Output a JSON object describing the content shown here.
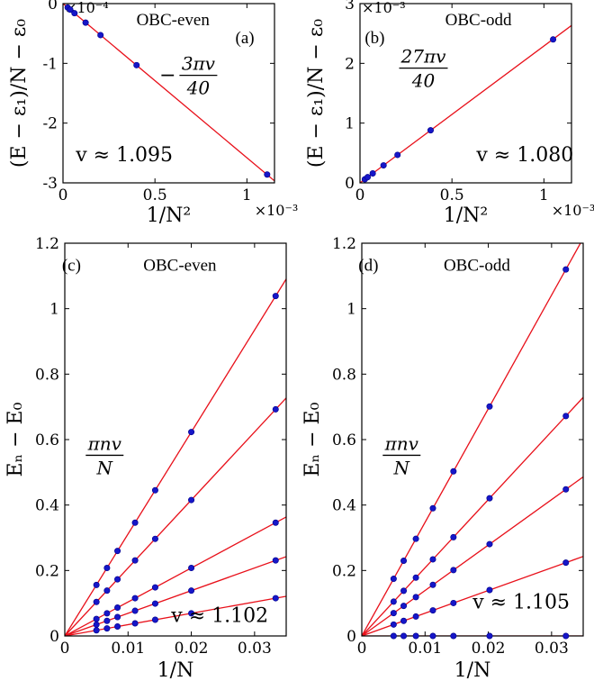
{
  "colors": {
    "fit_line": "#e8101a",
    "marker": "#1616c8",
    "marker_edge": "#00008b",
    "axes": "#000000"
  },
  "chart_data": [
    {
      "panel": "a",
      "type": "scatter",
      "tag": "(a)",
      "title": "OBC-even",
      "xlabel": "1/N²",
      "ylabel": "(E − ε₁)/N − ε₀",
      "x_multiplier": "×10⁻³",
      "y_multiplier": "×10⁻⁴",
      "xlim": [
        0,
        0.00115
      ],
      "ylim": [
        -0.0003,
        0
      ],
      "xticks": [
        0,
        0.0005,
        0.001
      ],
      "xticklabels": [
        "0",
        "0.5",
        "1"
      ],
      "yticks": [
        -0.0003,
        -0.0002,
        -0.0001,
        0
      ],
      "yticklabels": [
        "-3",
        "-2",
        "-1",
        "0"
      ],
      "fit_label": "− 3πv / 40",
      "fit_label_parts": {
        "sign": "−",
        "numerator": "3πv",
        "denominator": "40"
      },
      "velocity_label": "v ≈ 1.095",
      "slope": -0.258,
      "points": {
        "x": [
          2.55e-05,
          3.92e-05,
          6.25e-05,
          0.000123,
          0.000204,
          0.0004,
          0.00111
        ],
        "y": [
          -6.6e-06,
          -1.01e-05,
          -1.61e-05,
          -3.18e-05,
          -5.27e-05,
          -0.000103,
          -0.000286
        ]
      }
    },
    {
      "panel": "b",
      "type": "scatter",
      "tag": "(b)",
      "title": "OBC-odd",
      "xlabel": "1/N²",
      "ylabel": "(E − ε₁)/N − ε₀",
      "x_multiplier": "×10⁻³",
      "y_multiplier": "×10⁻³",
      "xlim": [
        0,
        0.00115
      ],
      "ylim": [
        0,
        0.003
      ],
      "xticks": [
        0,
        0.0005,
        0.001
      ],
      "xticklabels": [
        "0",
        "0.5",
        "1"
      ],
      "yticks": [
        0,
        0.001,
        0.002,
        0.003
      ],
      "yticklabels": [
        "0",
        "1",
        "2",
        "3"
      ],
      "fit_label": "27πv / 40",
      "fit_label_parts": {
        "sign": "",
        "numerator": "27πv",
        "denominator": "40"
      },
      "velocity_label": "v ≈ 1.080",
      "slope": 2.29,
      "points": {
        "x": [
          2.63e-05,
          4.16e-05,
          6.92e-05,
          0.000128,
          0.000204,
          0.000384,
          0.00105
        ],
        "y": [
          6.03e-05,
          9.53e-05,
          0.000158,
          0.000293,
          0.000468,
          0.00088,
          0.0024
        ]
      }
    },
    {
      "panel": "c",
      "type": "scatter",
      "tag": "(c)",
      "title": "OBC-even",
      "xlabel": "1/N",
      "ylabel": "Eₙ − E₀",
      "xlim": [
        0,
        0.035
      ],
      "ylim": [
        0,
        1.2
      ],
      "xticks": [
        0,
        0.01,
        0.02,
        0.03
      ],
      "xticklabels": [
        "0",
        "0.01",
        "0.02",
        "0.03"
      ],
      "yticks": [
        0,
        0.2,
        0.4,
        0.6,
        0.8,
        1.0,
        1.2
      ],
      "yticklabels": [
        "0",
        "0.2",
        "0.4",
        "0.6",
        "0.8",
        "1",
        "1.2"
      ],
      "fit_label": "πnv / N",
      "fit_label_parts": {
        "sign": "",
        "numerator": "πnv",
        "denominator": "N"
      },
      "velocity_label": "v ≈ 1.102",
      "x": [
        0.005,
        0.00667,
        0.00833,
        0.01111,
        0.01429,
        0.02,
        0.03333
      ],
      "series": [
        {
          "n": 1,
          "slope": 3.462,
          "values": [
            0.0173,
            0.0231,
            0.0289,
            0.0385,
            0.0495,
            0.0692,
            0.1154
          ]
        },
        {
          "n": 2,
          "slope": 6.924,
          "values": [
            0.0346,
            0.0462,
            0.0577,
            0.0769,
            0.0989,
            0.1385,
            0.2308
          ]
        },
        {
          "n": 3,
          "slope": 10.386,
          "values": [
            0.0519,
            0.0692,
            0.0866,
            0.1154,
            0.1484,
            0.2077,
            0.3462
          ]
        },
        {
          "n": 6,
          "slope": 20.772,
          "values": [
            0.1039,
            0.1385,
            0.1731,
            0.2308,
            0.2967,
            0.4154,
            0.6924
          ]
        },
        {
          "n": 9,
          "slope": 31.158,
          "values": [
            0.1558,
            0.2077,
            0.2597,
            0.3462,
            0.4451,
            0.6232,
            1.0386
          ]
        }
      ]
    },
    {
      "panel": "d",
      "type": "scatter",
      "tag": "(d)",
      "title": "OBC-odd",
      "xlabel": "1/N",
      "ylabel": "Eₙ − E₀",
      "xlim": [
        0,
        0.035
      ],
      "ylim": [
        0,
        1.2
      ],
      "xticks": [
        0,
        0.01,
        0.02,
        0.03
      ],
      "xticklabels": [
        "0",
        "0.01",
        "0.02",
        "0.03"
      ],
      "yticks": [
        0,
        0.2,
        0.4,
        0.6,
        0.8,
        1.0,
        1.2
      ],
      "yticklabels": [
        "0",
        "0.2",
        "0.4",
        "0.6",
        "0.8",
        "1",
        "1.2"
      ],
      "fit_label": "πnv / N",
      "fit_label_parts": {
        "sign": "",
        "numerator": "πnv",
        "denominator": "N"
      },
      "velocity_label": "v ≈ 1.105",
      "x": [
        0.00503,
        0.00662,
        0.00855,
        0.01124,
        0.01449,
        0.0202,
        0.03226
      ],
      "series": [
        {
          "n": 0,
          "slope": 0,
          "values": [
            0,
            0,
            0,
            0,
            0,
            0,
            0
          ]
        },
        {
          "n": 2,
          "slope": 6.943,
          "values": [
            0.0349,
            0.046,
            0.0594,
            0.078,
            0.1006,
            0.1403,
            0.224
          ]
        },
        {
          "n": 4,
          "slope": 13.886,
          "values": [
            0.0698,
            0.0919,
            0.1187,
            0.1561,
            0.2012,
            0.2805,
            0.448
          ]
        },
        {
          "n": 6,
          "slope": 20.829,
          "values": [
            0.1048,
            0.1379,
            0.1781,
            0.2341,
            0.3018,
            0.4208,
            0.6719
          ]
        },
        {
          "n": 10,
          "slope": 34.715,
          "values": [
            0.1746,
            0.2298,
            0.2968,
            0.3902,
            0.503,
            0.7012,
            1.1199
          ]
        }
      ]
    }
  ]
}
